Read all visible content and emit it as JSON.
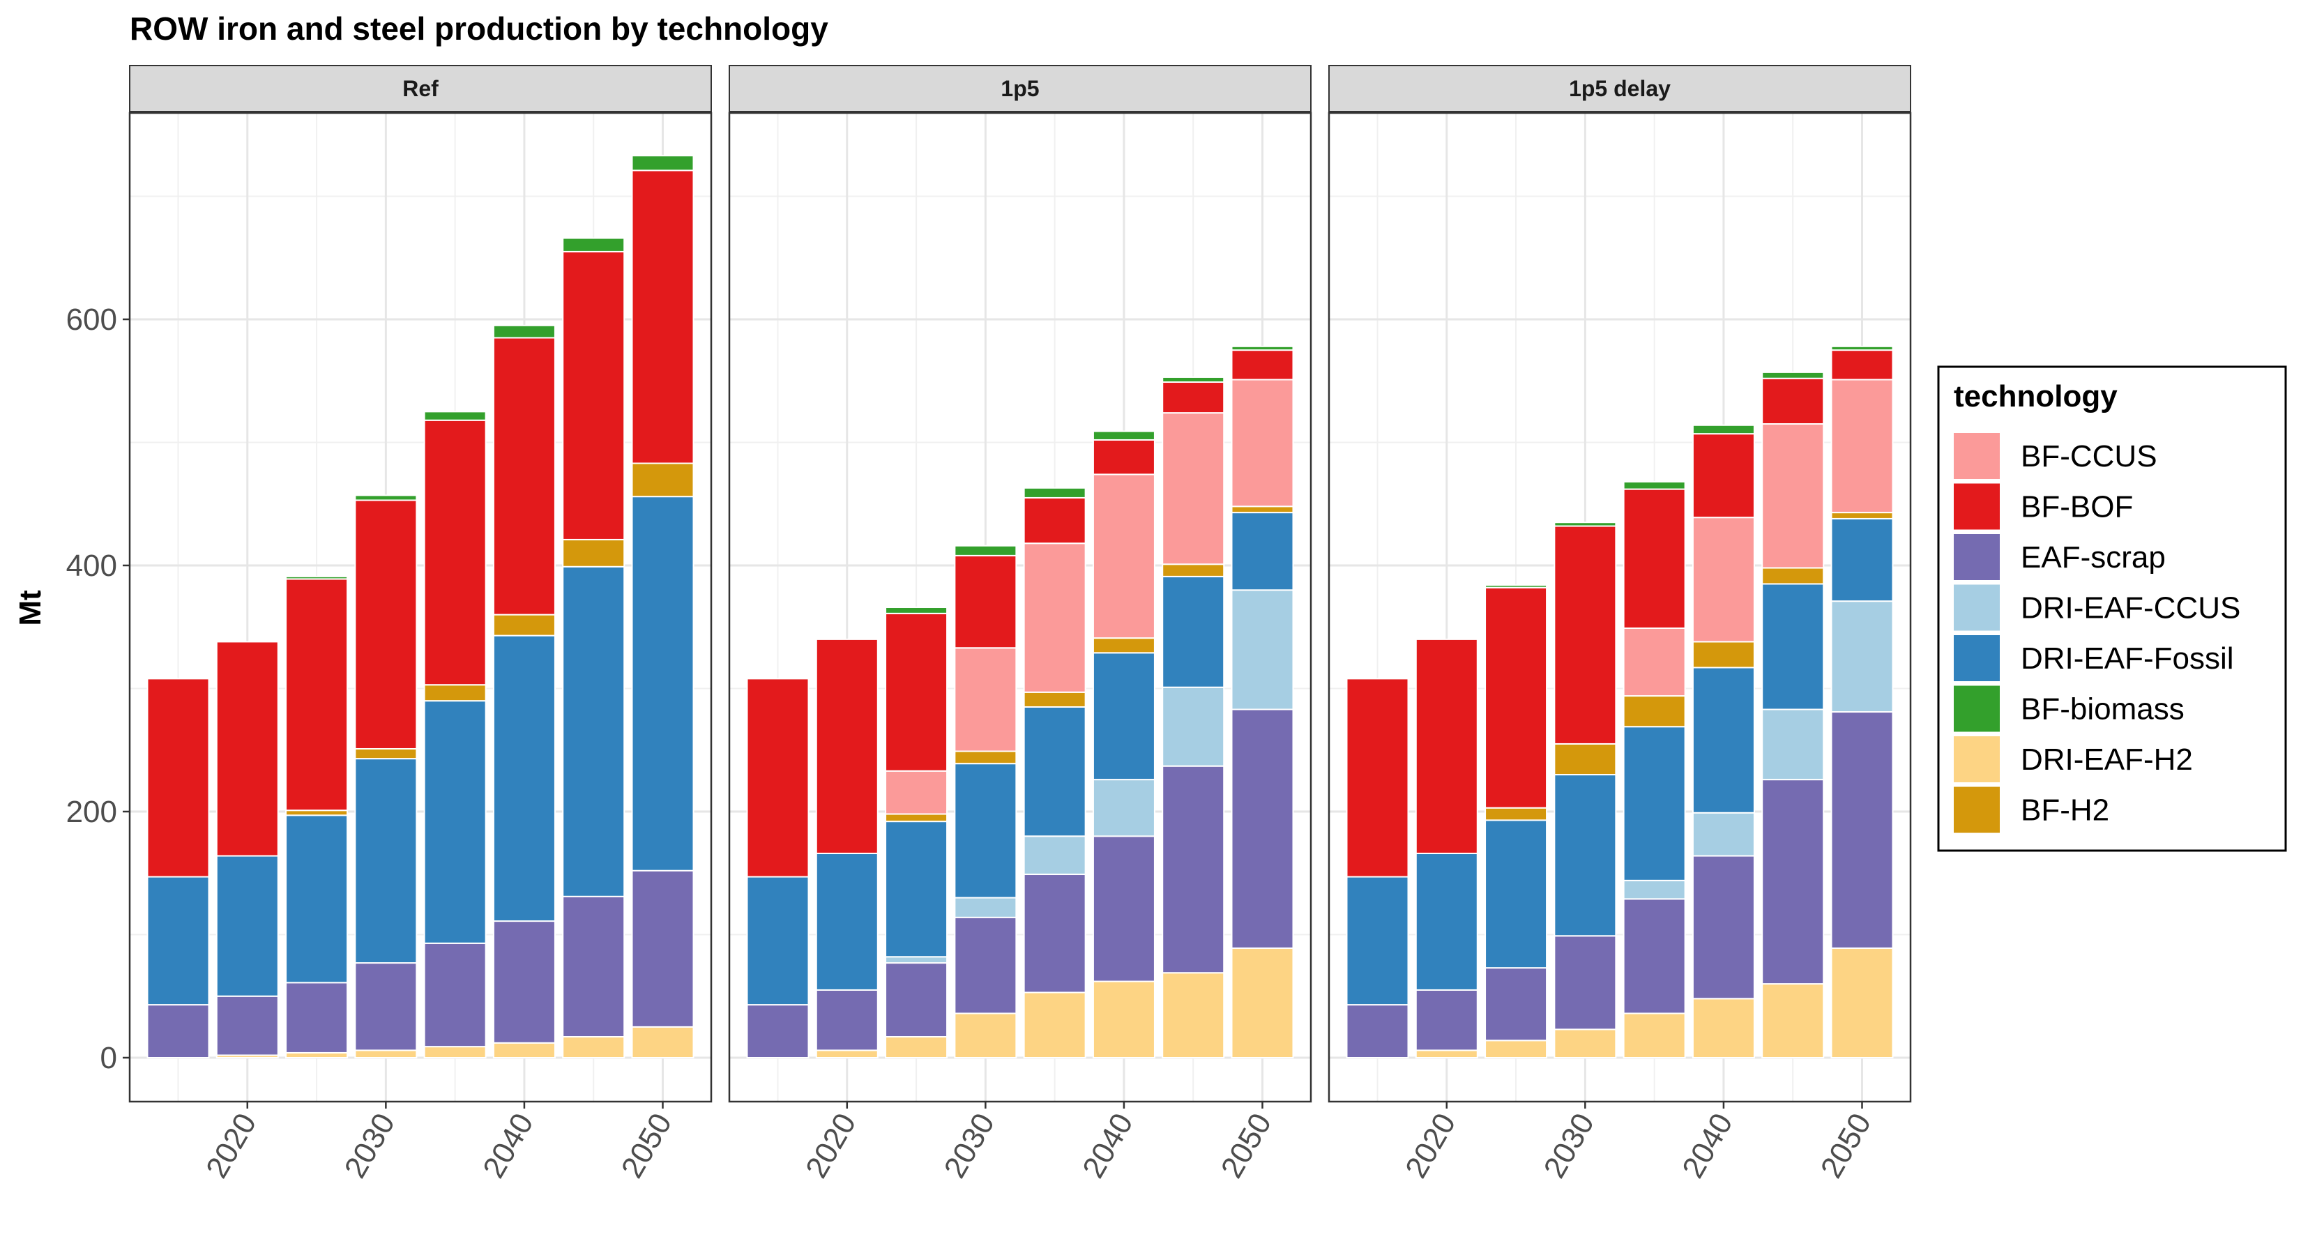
{
  "chart_data": {
    "type": "bar",
    "stacked": true,
    "title": "ROW iron and steel production by technology",
    "ylabel": "Mt",
    "xlabel": "",
    "ylim": [
      0,
      750
    ],
    "y_ticks": [
      0,
      200,
      400,
      600
    ],
    "x_ticks": [
      2020,
      2030,
      2040,
      2050
    ],
    "grid": true,
    "legend_title": "technology",
    "legend_position": "right",
    "x": [
      2015,
      2020,
      2025,
      2030,
      2035,
      2040,
      2045,
      2050
    ],
    "stack_order": [
      "DRI-EAF-H2",
      "EAF-scrap",
      "DRI-EAF-CCUS",
      "DRI-EAF-Fossil",
      "BF-H2",
      "BF-CCUS",
      "BF-BOF",
      "BF-biomass"
    ],
    "legend": [
      {
        "name": "BF-CCUS",
        "color": "#FB9A99"
      },
      {
        "name": "BF-BOF",
        "color": "#E31A1C"
      },
      {
        "name": "EAF-scrap",
        "color": "#756BB1"
      },
      {
        "name": "DRI-EAF-CCUS",
        "color": "#A6CEE3"
      },
      {
        "name": "DRI-EAF-Fossil",
        "color": "#3182BD"
      },
      {
        "name": "BF-biomass",
        "color": "#33A02C"
      },
      {
        "name": "DRI-EAF-H2",
        "color": "#FDD484"
      },
      {
        "name": "BF-H2",
        "color": "#D4980C"
      }
    ],
    "panels": [
      {
        "name": "Ref",
        "series": [
          {
            "name": "DRI-EAF-H2",
            "values": [
              0,
              2,
              4,
              6,
              9,
              12,
              17,
              25
            ]
          },
          {
            "name": "EAF-scrap",
            "values": [
              43,
              48,
              57,
              71,
              84,
              99,
              114,
              127
            ]
          },
          {
            "name": "DRI-EAF-CCUS",
            "values": [
              0,
              0,
              0,
              0,
              0,
              0,
              0,
              0
            ]
          },
          {
            "name": "DRI-EAF-Fossil",
            "values": [
              104,
              114,
              136,
              166,
              197,
              232,
              268,
              304
            ]
          },
          {
            "name": "BF-H2",
            "values": [
              0,
              0,
              4,
              8,
              13,
              17,
              22,
              27
            ]
          },
          {
            "name": "BF-CCUS",
            "values": [
              0,
              0,
              0,
              0,
              0,
              0,
              0,
              0
            ]
          },
          {
            "name": "BF-BOF",
            "values": [
              161,
              174,
              188,
              202,
              215,
              225,
              234,
              238
            ]
          },
          {
            "name": "BF-biomass",
            "values": [
              0,
              0,
              2,
              4,
              7,
              10,
              11,
              12
            ]
          }
        ]
      },
      {
        "name": "1p5",
        "series": [
          {
            "name": "DRI-EAF-H2",
            "values": [
              0,
              6,
              17,
              36,
              53,
              62,
              69,
              89
            ]
          },
          {
            "name": "EAF-scrap",
            "values": [
              43,
              49,
              60,
              78,
              96,
              118,
              168,
              194
            ]
          },
          {
            "name": "DRI-EAF-CCUS",
            "values": [
              0,
              0,
              5,
              16,
              31,
              46,
              64,
              97
            ]
          },
          {
            "name": "DRI-EAF-Fossil",
            "values": [
              104,
              111,
              110,
              109,
              105,
              103,
              90,
              63
            ]
          },
          {
            "name": "BF-H2",
            "values": [
              0,
              0,
              6,
              10,
              12,
              12,
              10,
              5
            ]
          },
          {
            "name": "BF-CCUS",
            "values": [
              0,
              0,
              35,
              84,
              121,
              133,
              123,
              103
            ]
          },
          {
            "name": "BF-BOF",
            "values": [
              161,
              174,
              128,
              75,
              37,
              28,
              25,
              24
            ]
          },
          {
            "name": "BF-biomass",
            "values": [
              0,
              0,
              5,
              8,
              8,
              7,
              4,
              3
            ]
          }
        ]
      },
      {
        "name": "1p5 delay",
        "series": [
          {
            "name": "DRI-EAF-H2",
            "values": [
              0,
              6,
              14,
              23,
              36,
              48,
              60,
              89
            ]
          },
          {
            "name": "EAF-scrap",
            "values": [
              43,
              49,
              59,
              76,
              93,
              116,
              166,
              192
            ]
          },
          {
            "name": "DRI-EAF-CCUS",
            "values": [
              0,
              0,
              0,
              0,
              15,
              35,
              57,
              90
            ]
          },
          {
            "name": "DRI-EAF-Fossil",
            "values": [
              104,
              111,
              120,
              131,
              125,
              118,
              102,
              67
            ]
          },
          {
            "name": "BF-H2",
            "values": [
              0,
              0,
              10,
              25,
              25,
              21,
              13,
              5
            ]
          },
          {
            "name": "BF-CCUS",
            "values": [
              0,
              0,
              0,
              0,
              55,
              101,
              117,
              108
            ]
          },
          {
            "name": "BF-BOF",
            "values": [
              161,
              174,
              179,
              177,
              113,
              68,
              37,
              24
            ]
          },
          {
            "name": "BF-biomass",
            "values": [
              0,
              0,
              2,
              3,
              6,
              7,
              5,
              3
            ]
          }
        ]
      }
    ]
  }
}
